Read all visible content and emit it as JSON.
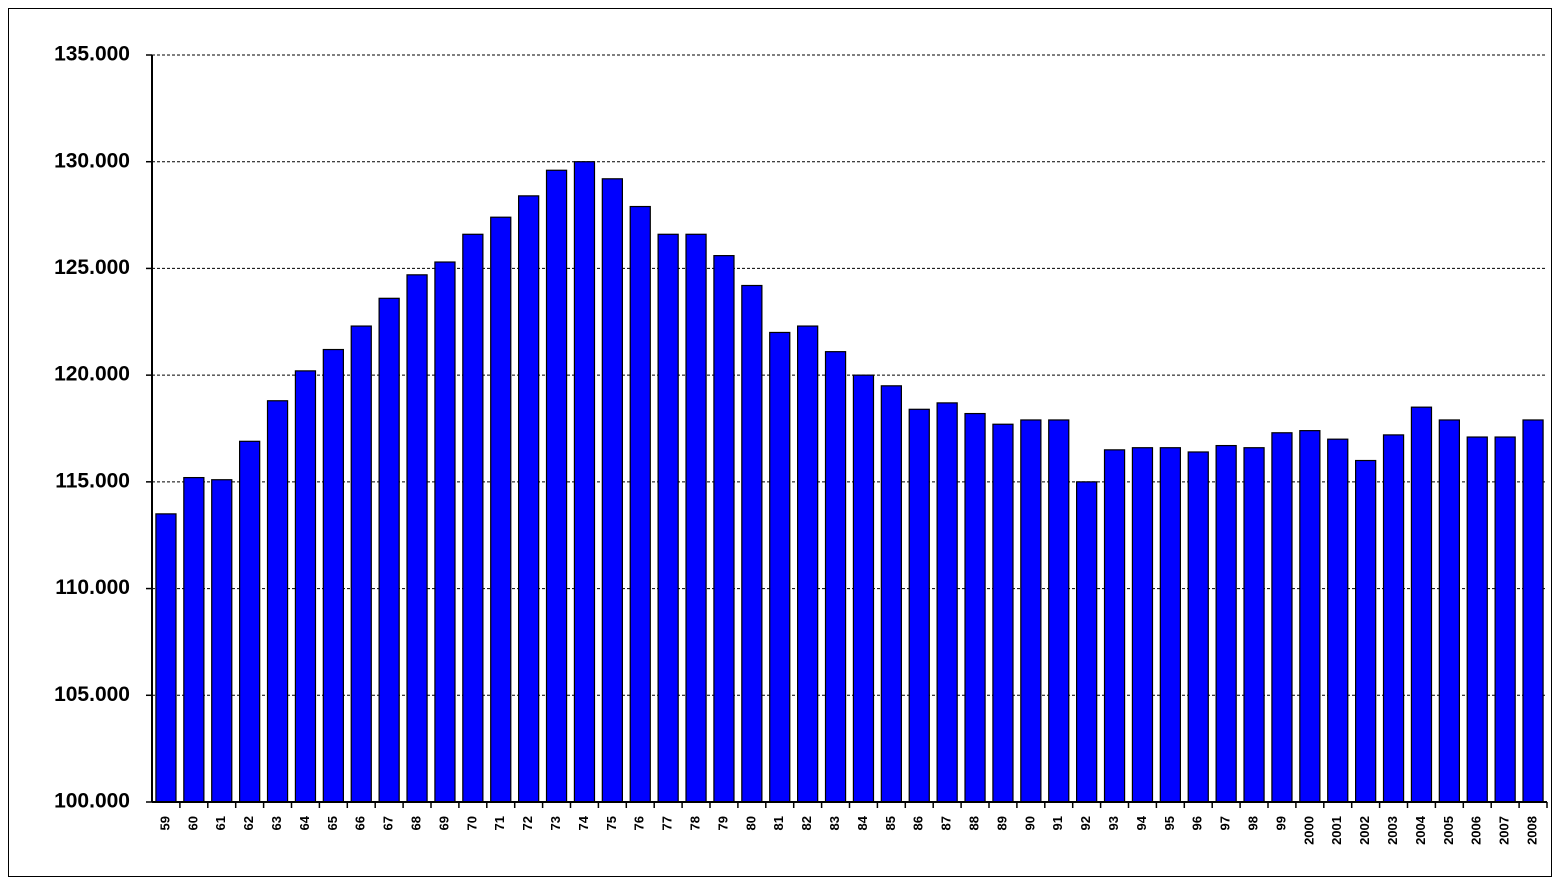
{
  "chart_data": {
    "type": "bar",
    "categories": [
      "59",
      "60",
      "61",
      "62",
      "63",
      "64",
      "65",
      "66",
      "67",
      "68",
      "69",
      "70",
      "71",
      "72",
      "73",
      "74",
      "75",
      "76",
      "77",
      "78",
      "79",
      "80",
      "81",
      "82",
      "83",
      "84",
      "85",
      "86",
      "87",
      "88",
      "89",
      "90",
      "91",
      "92",
      "93",
      "94",
      "95",
      "96",
      "97",
      "98",
      "99",
      "2000",
      "2001",
      "2002",
      "2003",
      "2004",
      "2005",
      "2006",
      "2007",
      "2008"
    ],
    "values": [
      113500,
      115200,
      115100,
      116900,
      118800,
      120200,
      121200,
      122300,
      123600,
      124700,
      125300,
      126600,
      127400,
      128400,
      129600,
      130000,
      129200,
      127900,
      126600,
      126600,
      125600,
      124200,
      122000,
      122300,
      121100,
      120000,
      119500,
      118400,
      118700,
      118200,
      117700,
      117900,
      117900,
      115000,
      116500,
      116600,
      116600,
      116400,
      116700,
      116600,
      117300,
      117400,
      117000,
      116000,
      117200,
      118500,
      117900,
      117100,
      117100,
      117900
    ],
    "color": "#0000ff",
    "ylim": [
      100000,
      135000
    ],
    "yticks": [
      {
        "value": 100000,
        "label": "100.000"
      },
      {
        "value": 105000,
        "label": "105.000"
      },
      {
        "value": 110000,
        "label": "110.000"
      },
      {
        "value": 115000,
        "label": "115.000"
      },
      {
        "value": 120000,
        "label": "120.000"
      },
      {
        "value": 125000,
        "label": "125.000"
      },
      {
        "value": 130000,
        "label": "130.000"
      },
      {
        "value": 135000,
        "label": "135.000"
      }
    ],
    "grid": true
  }
}
